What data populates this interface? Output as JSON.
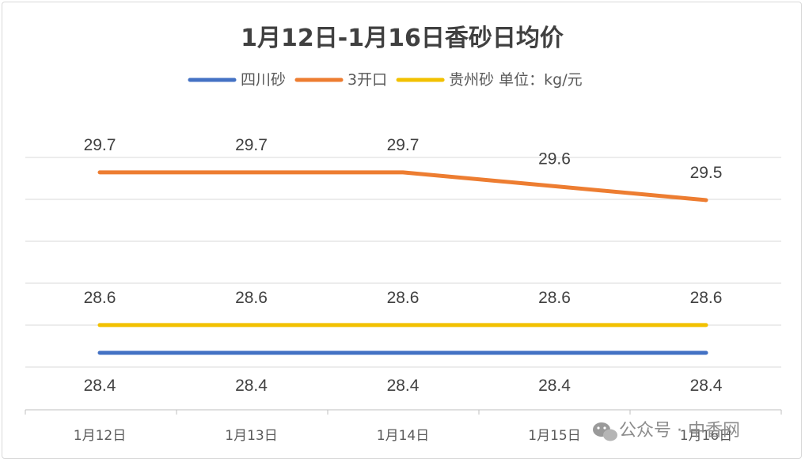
{
  "chart_data": {
    "type": "line",
    "title": "1月12日-1月16日香砂日均价",
    "unit_note": "单位：kg/元",
    "categories": [
      "1月12日",
      "1月13日",
      "1月14日",
      "1月15日",
      "1月16日"
    ],
    "series": [
      {
        "name": "四川砂",
        "color": "#4472c4",
        "values": [
          28.4,
          28.4,
          28.4,
          28.4,
          28.4
        ]
      },
      {
        "name": "3开口",
        "color": "#ed7d31",
        "values": [
          29.7,
          29.7,
          29.7,
          29.6,
          29.5
        ]
      },
      {
        "name": "贵州砂",
        "color": "#f2c100",
        "values": [
          28.6,
          28.6,
          28.6,
          28.6,
          28.6
        ]
      }
    ],
    "legend_position": "top",
    "gridlines": true
  },
  "watermark": {
    "icon": "wechat-icon",
    "text": "公众号 · 中香网"
  }
}
